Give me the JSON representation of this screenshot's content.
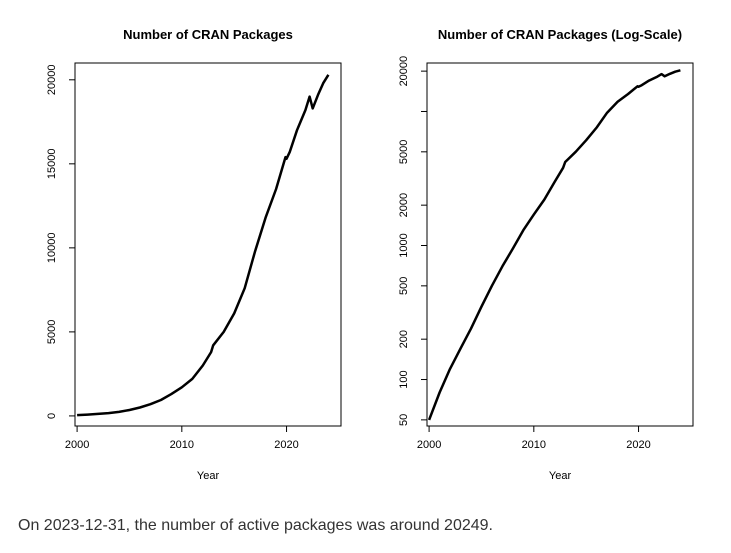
{
  "caption": "On 2023-12-31, the number of active packages was around 20249.",
  "chart_data": [
    {
      "type": "line",
      "title": "Number of CRAN Packages",
      "xlabel": "Year",
      "ylabel": "",
      "xlim": [
        1999.8,
        2025.2
      ],
      "ylim": [
        -600,
        21000
      ],
      "xticks": [
        2000,
        2010,
        2020
      ],
      "yticks": [
        0,
        5000,
        10000,
        15000,
        20000
      ],
      "ytick_labels": [
        "0",
        "5000",
        "10000",
        "15000",
        "20000"
      ],
      "log_y": false,
      "series": [
        {
          "x": [
            2000,
            2001,
            2002,
            2003,
            2004,
            2005,
            2006,
            2007,
            2008,
            2009,
            2010,
            2011,
            2012,
            2012.8,
            2013,
            2014,
            2015,
            2016,
            2017,
            2018,
            2019,
            2019.9,
            2020,
            2020.3,
            2021,
            2021.8,
            2022.2,
            2022.5,
            2023,
            2023.5,
            2024
          ],
          "y": [
            50,
            80,
            120,
            170,
            240,
            350,
            500,
            700,
            950,
            1300,
            1700,
            2200,
            3000,
            3800,
            4200,
            5000,
            6100,
            7600,
            9800,
            11800,
            13500,
            15400,
            15300,
            15700,
            17000,
            18200,
            19000,
            18300,
            19100,
            19800,
            20300
          ]
        }
      ]
    },
    {
      "type": "line",
      "title": "Number of CRAN Packages (Log-Scale)",
      "xlabel": "Year",
      "ylabel": "",
      "xlim": [
        1999.8,
        2025.2
      ],
      "ylim": [
        45,
        23000
      ],
      "xticks": [
        2000,
        2010,
        2020
      ],
      "yticks": [
        50,
        100,
        200,
        500,
        1000,
        2000,
        5000,
        20000
      ],
      "ytick_labels": [
        "50",
        "100",
        "200",
        "500",
        "1000",
        "2000",
        "5000",
        "20000"
      ],
      "minor_yticks": [
        10000
      ],
      "log_y": true,
      "series": [
        {
          "x": [
            2000,
            2001,
            2002,
            2003,
            2004,
            2005,
            2006,
            2007,
            2008,
            2009,
            2010,
            2011,
            2012,
            2012.8,
            2013,
            2014,
            2015,
            2016,
            2017,
            2018,
            2019,
            2019.9,
            2020,
            2020.3,
            2021,
            2021.8,
            2022.2,
            2022.5,
            2023,
            2023.5,
            2024
          ],
          "y": [
            50,
            80,
            120,
            170,
            240,
            350,
            500,
            700,
            950,
            1300,
            1700,
            2200,
            3000,
            3800,
            4200,
            5000,
            6100,
            7600,
            9800,
            11800,
            13500,
            15400,
            15300,
            15700,
            17000,
            18200,
            19000,
            18300,
            19100,
            19800,
            20300
          ]
        }
      ]
    }
  ]
}
